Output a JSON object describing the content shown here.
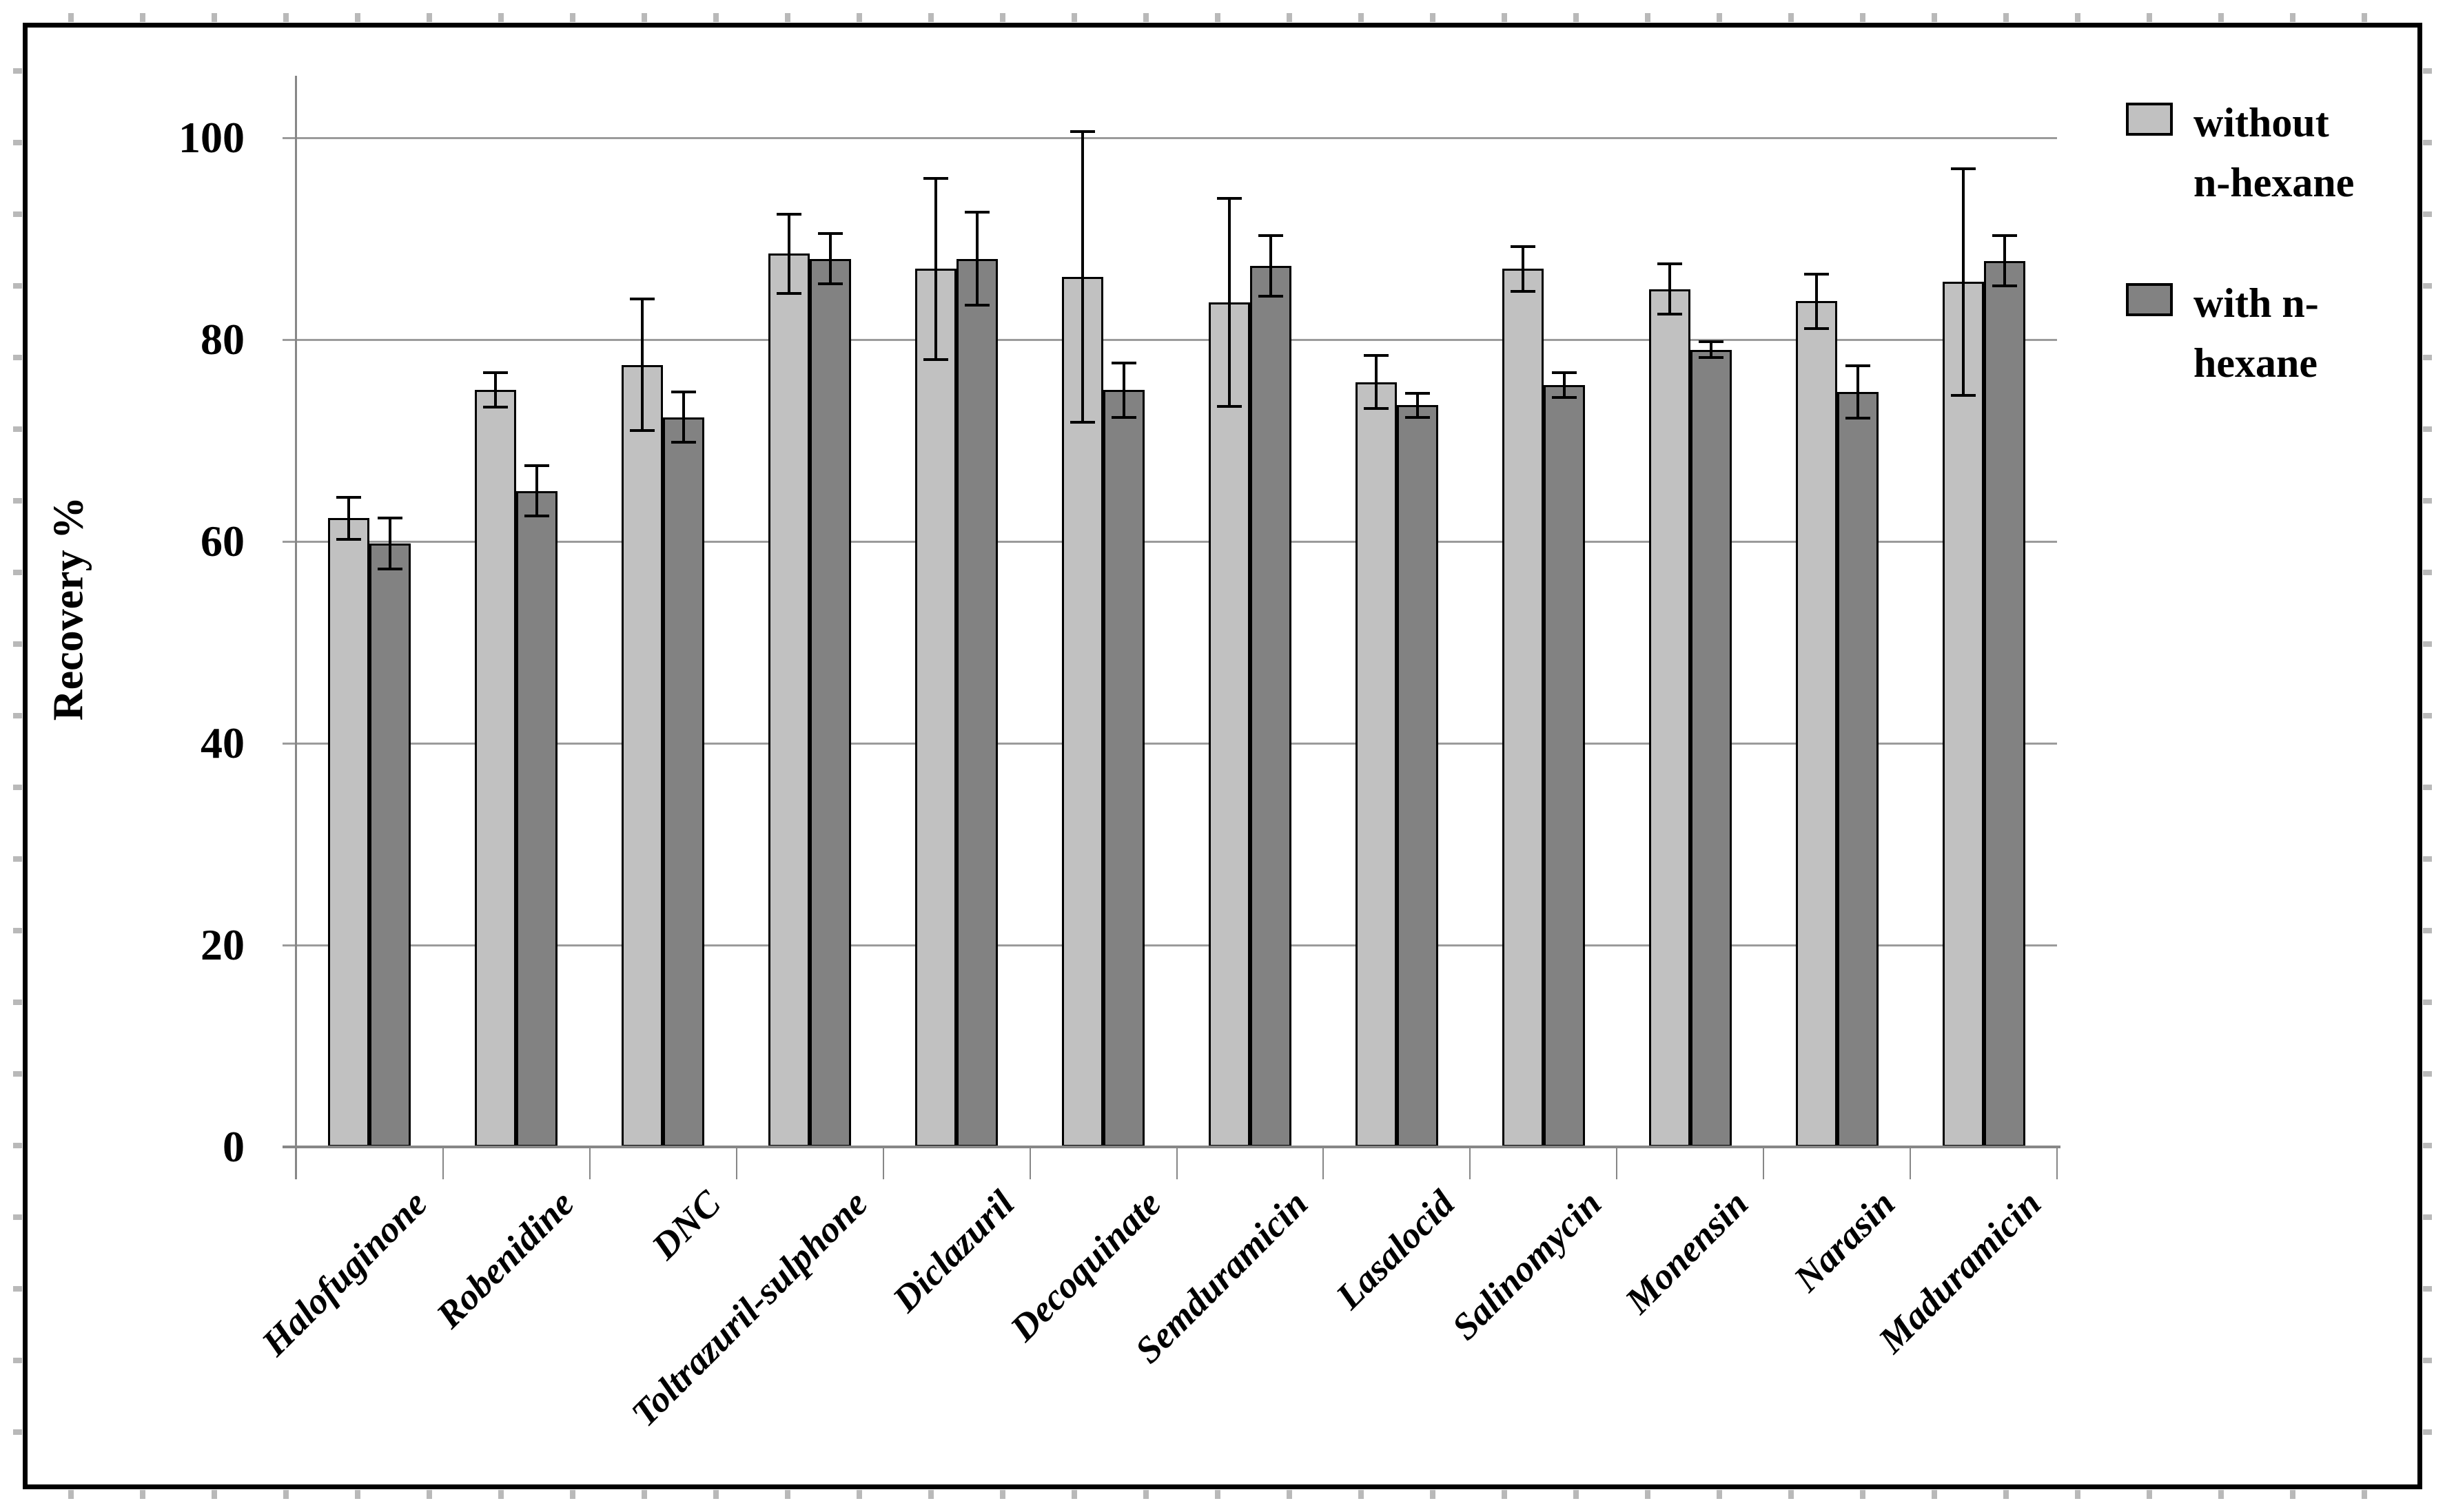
{
  "y_axis": {
    "title": "Recovery %",
    "ticks": [
      0,
      20,
      40,
      60,
      80,
      100
    ]
  },
  "legend": {
    "items": [
      {
        "label": "without n-hexane",
        "line1": "without",
        "line2": "n-hexane",
        "color": "#c1c1c1"
      },
      {
        "label": "with n-hexane",
        "line1": "with n-",
        "line2": "hexane",
        "color": "#828282"
      }
    ]
  },
  "chart_data": {
    "type": "bar",
    "title": "",
    "xlabel": "",
    "ylabel": "Recovery %",
    "ylim": [
      0,
      100
    ],
    "grid": true,
    "legend_position": "right",
    "categories": [
      "Halofuginone",
      "Robenidine",
      "DNC",
      "Toltrazuril-sulphone",
      "Diclazuril",
      "Decoquinate",
      "Semduramicin",
      "Lasalocid",
      "Salinomycin",
      "Monensin",
      "Narasin",
      "Maduramicin"
    ],
    "series": [
      {
        "name": "without n-hexane",
        "color": "#c1c1c1",
        "values": [
          62.3,
          75.0,
          77.5,
          88.5,
          87.0,
          86.2,
          83.7,
          75.8,
          87.0,
          85.0,
          83.8,
          85.7
        ],
        "errors": [
          2.1,
          1.7,
          6.5,
          3.9,
          9.0,
          14.4,
          10.3,
          2.6,
          2.2,
          2.5,
          2.7,
          11.2
        ]
      },
      {
        "name": "with n-hexane",
        "color": "#828282",
        "values": [
          59.8,
          65.0,
          72.3,
          88.0,
          88.0,
          75.0,
          87.3,
          73.5,
          75.5,
          79.0,
          74.8,
          87.8
        ],
        "errors": [
          2.5,
          2.5,
          2.5,
          2.5,
          4.6,
          2.7,
          3.0,
          1.2,
          1.2,
          0.8,
          2.6,
          2.5
        ]
      }
    ]
  },
  "colors": {
    "bar_light": "#c1c1c1",
    "bar_dark": "#828282",
    "bar_border": "#000000",
    "gridline": "#9b9b9b",
    "axis_line": "#878787",
    "error_bar": "#000000",
    "figure_border": "#000000",
    "background": "#ffffff"
  }
}
